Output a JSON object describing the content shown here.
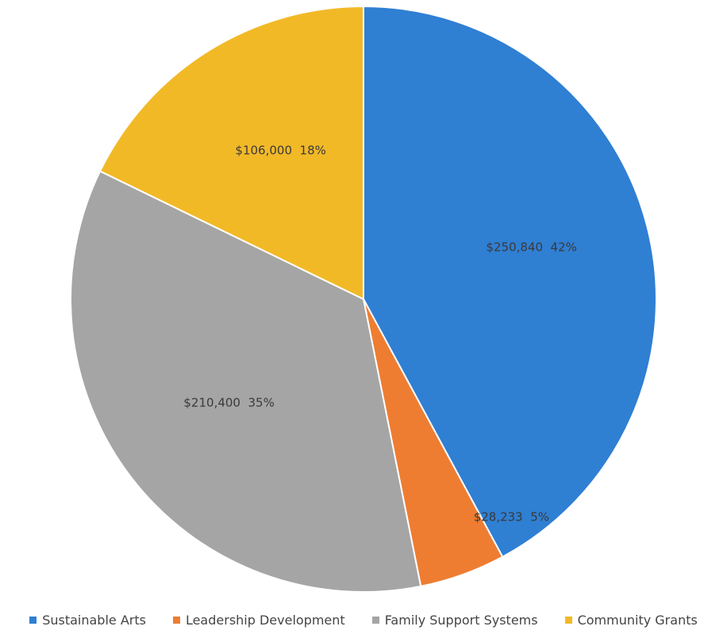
{
  "chart_data": {
    "type": "pie",
    "categories": [
      "Sustainable Arts",
      "Leadership Development",
      "Family Support Systems",
      "Community Grants"
    ],
    "values": [
      250840,
      28233,
      210400,
      106000
    ],
    "data_labels": [
      "$250,840  42%",
      "$28,233  5%",
      "$210,400  35%",
      "$106,000  18%"
    ],
    "colors": [
      "#2f7fd3",
      "#ee7d32",
      "#a5a5a5",
      "#f2b927"
    ],
    "start_angle_deg": 0,
    "direction": "clockwise",
    "legend_position": "bottom"
  }
}
